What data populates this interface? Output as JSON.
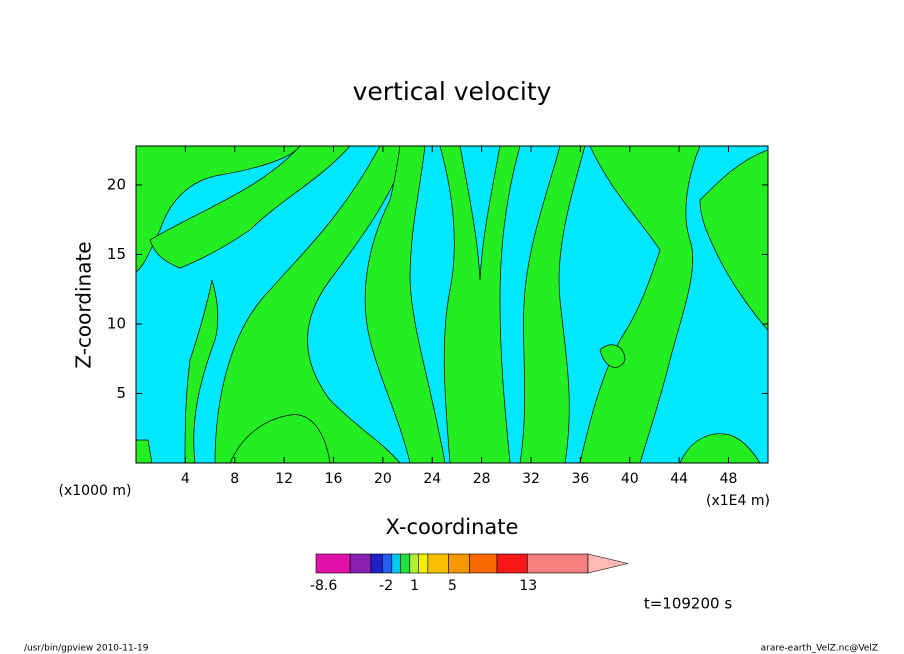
{
  "chart_data": {
    "type": "contour",
    "title": "vertical velocity",
    "xlabel": "X-coordinate",
    "ylabel": "Z-coordinate",
    "x_unit_left": "(x1000 m)",
    "x_unit_right": "(x1E4 m)",
    "xlim": [
      0,
      51.2
    ],
    "xticks": [
      4,
      8,
      12,
      16,
      20,
      24,
      28,
      32,
      36,
      40,
      44,
      48
    ],
    "ylim": [
      0,
      22.8
    ],
    "yticks": [
      5,
      10,
      15,
      20
    ],
    "background_color": "#00e8ff",
    "region_color": "#22ee22",
    "colorbar": {
      "levels": [
        -9.4,
        -5.8,
        -3.6,
        -2.4,
        -1.4,
        -0.5,
        0.5,
        1.4,
        2.4,
        4.6,
        6.8,
        9.7,
        12.9,
        19.3
      ],
      "colors": [
        "#e010a8",
        "#8a20b0",
        "#2020c8",
        "#2060f0",
        "#00c8f0",
        "#22e040",
        "#b0f030",
        "#f0f000",
        "#f8c000",
        "#f89800",
        "#f86800",
        "#f81818",
        "#f88080",
        "#ffb8b8"
      ],
      "ticks": [
        -8.6,
        -2,
        1,
        5,
        13
      ]
    },
    "time_label": "t=109200 s",
    "footer_left": "/usr/bin/gpview  2010-11-19",
    "footer_right": "arare-earth_VelZ.nc@VelZ"
  }
}
